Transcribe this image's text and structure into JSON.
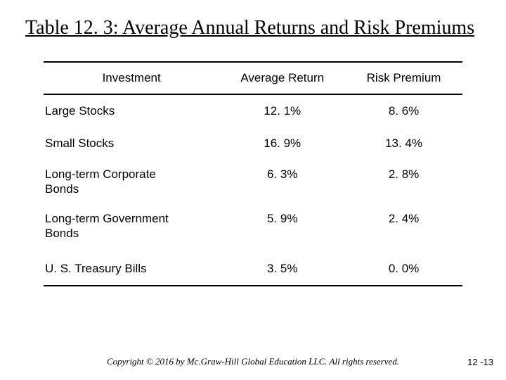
{
  "title": "Table 12. 3: Average Annual Returns and Risk Premiums",
  "table": {
    "columns": [
      "Investment",
      "Average Return",
      "Risk Premium"
    ],
    "rows": [
      {
        "label": "Large Stocks",
        "return": "12. 1%",
        "premium": "8. 6%"
      },
      {
        "label": "Small Stocks",
        "return": "16. 9%",
        "premium": "13. 4%"
      },
      {
        "label": "Long-term Corporate Bonds",
        "return": "6. 3%",
        "premium": "2. 8%"
      },
      {
        "label": "Long-term Government Bonds",
        "return": "5. 9%",
        "premium": "2. 4%"
      },
      {
        "label": "U. S. Treasury Bills",
        "return": "3. 5%",
        "premium": "0. 0%"
      }
    ]
  },
  "footer": "Copyright © 2016 by Mc.Graw-Hill Global Education LLC. All rights reserved.",
  "page_number": "12 -13"
}
